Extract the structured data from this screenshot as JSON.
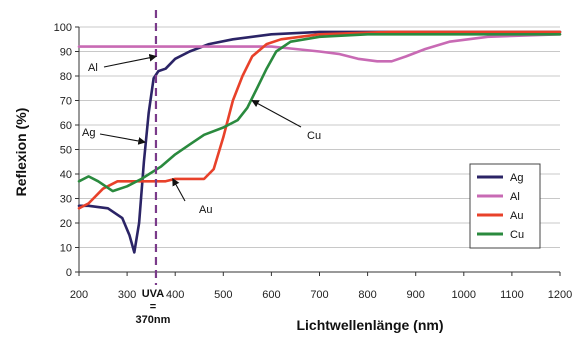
{
  "chart_data": {
    "type": "line",
    "title": "",
    "xlabel": "Lichtwellenlänge (nm)",
    "ylabel": "Reflexion (%)",
    "xlim": [
      200,
      1200
    ],
    "ylim": [
      0,
      100
    ],
    "x_ticks": [
      "200",
      "300",
      "400",
      "500",
      "600",
      "700",
      "800",
      "900",
      "1000",
      "1100",
      "1200"
    ],
    "y_ticks": [
      "0",
      "10",
      "20",
      "30",
      "40",
      "50",
      "60",
      "70",
      "80",
      "90",
      "100"
    ],
    "grid": true,
    "legend_position": "bottom-right",
    "series": [
      {
        "name": "Ag",
        "color": "#2b2466",
        "points": [
          [
            200,
            27
          ],
          [
            220,
            27
          ],
          [
            260,
            26
          ],
          [
            290,
            22
          ],
          [
            305,
            15
          ],
          [
            315,
            8
          ],
          [
            325,
            20
          ],
          [
            335,
            45
          ],
          [
            345,
            65
          ],
          [
            355,
            79
          ],
          [
            365,
            82
          ],
          [
            380,
            83
          ],
          [
            400,
            87
          ],
          [
            430,
            90
          ],
          [
            470,
            93
          ],
          [
            520,
            95
          ],
          [
            600,
            97
          ],
          [
            700,
            98
          ],
          [
            900,
            98
          ],
          [
            1100,
            98
          ],
          [
            1200,
            98
          ]
        ]
      },
      {
        "name": "Al",
        "color": "#c86ab4",
        "points": [
          [
            200,
            92
          ],
          [
            300,
            92
          ],
          [
            400,
            92
          ],
          [
            500,
            92
          ],
          [
            600,
            92
          ],
          [
            650,
            91
          ],
          [
            700,
            90
          ],
          [
            740,
            89
          ],
          [
            780,
            87
          ],
          [
            820,
            86
          ],
          [
            850,
            86
          ],
          [
            880,
            88
          ],
          [
            920,
            91
          ],
          [
            970,
            94
          ],
          [
            1050,
            96
          ],
          [
            1200,
            97
          ]
        ]
      },
      {
        "name": "Au",
        "color": "#e8412a",
        "points": [
          [
            200,
            26
          ],
          [
            220,
            28
          ],
          [
            250,
            34
          ],
          [
            280,
            37
          ],
          [
            330,
            37
          ],
          [
            360,
            37
          ],
          [
            380,
            37
          ],
          [
            400,
            38
          ],
          [
            430,
            38
          ],
          [
            460,
            38
          ],
          [
            480,
            42
          ],
          [
            500,
            55
          ],
          [
            520,
            70
          ],
          [
            540,
            80
          ],
          [
            560,
            88
          ],
          [
            590,
            93
          ],
          [
            620,
            95
          ],
          [
            700,
            97
          ],
          [
            850,
            98
          ],
          [
            1200,
            98
          ]
        ]
      },
      {
        "name": "Cu",
        "color": "#2a8a3e",
        "points": [
          [
            200,
            37
          ],
          [
            220,
            39
          ],
          [
            240,
            37
          ],
          [
            270,
            33
          ],
          [
            300,
            35
          ],
          [
            330,
            38
          ],
          [
            370,
            43
          ],
          [
            400,
            48
          ],
          [
            430,
            52
          ],
          [
            460,
            56
          ],
          [
            500,
            59
          ],
          [
            530,
            62
          ],
          [
            550,
            67
          ],
          [
            570,
            75
          ],
          [
            590,
            83
          ],
          [
            610,
            90
          ],
          [
            640,
            94
          ],
          [
            700,
            96
          ],
          [
            800,
            97
          ],
          [
            1200,
            97
          ]
        ]
      }
    ],
    "annotations": [
      {
        "text": "Al",
        "points_to": [
          360,
          88
        ]
      },
      {
        "text": "Ag",
        "points_to": [
          337,
          53
        ]
      },
      {
        "text": "Au",
        "points_to": [
          395,
          38
        ]
      },
      {
        "text": "Cu",
        "points_to": [
          560,
          70
        ]
      }
    ],
    "marker_line": {
      "x": 360,
      "label_lines": [
        "UVA",
        "=",
        "370nm"
      ],
      "color": "#7a3a8a"
    }
  }
}
